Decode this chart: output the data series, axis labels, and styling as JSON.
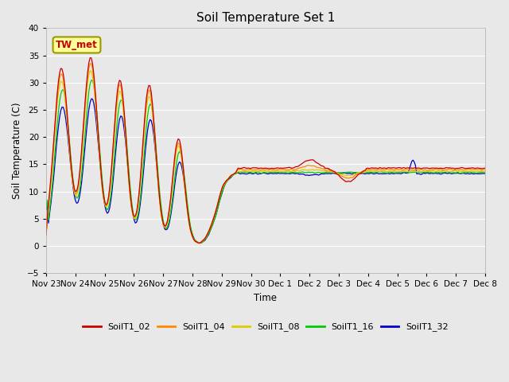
{
  "title": "Soil Temperature Set 1",
  "xlabel": "Time",
  "ylabel": "Soil Temperature (C)",
  "ylim": [
    -5,
    40
  ],
  "yticks": [
    -5,
    0,
    5,
    10,
    15,
    20,
    25,
    30,
    35,
    40
  ],
  "background_color": "#e8e8e8",
  "plot_bg_color": "#e8e8e8",
  "series_colors": [
    "#cc0000",
    "#ff8800",
    "#ddcc00",
    "#00cc00",
    "#0000cc"
  ],
  "series_labels": [
    "SoilT1_02",
    "SoilT1_04",
    "SoilT1_08",
    "SoilT1_16",
    "SoilT1_32"
  ],
  "annotation_text": "TW_met",
  "annotation_color": "#cc0000",
  "annotation_bg": "#ffff99",
  "annotation_border": "#999900",
  "tick_labels": [
    "Nov 23",
    "Nov 24",
    "Nov 25",
    "Nov 26",
    "Nov 27",
    "Nov 28",
    "Nov 29",
    "Nov 30",
    "Dec 1",
    "Dec 2",
    "Dec 3",
    "Dec 4",
    "Dec 5",
    "Dec 6",
    "Dec 7",
    "Dec 8"
  ]
}
